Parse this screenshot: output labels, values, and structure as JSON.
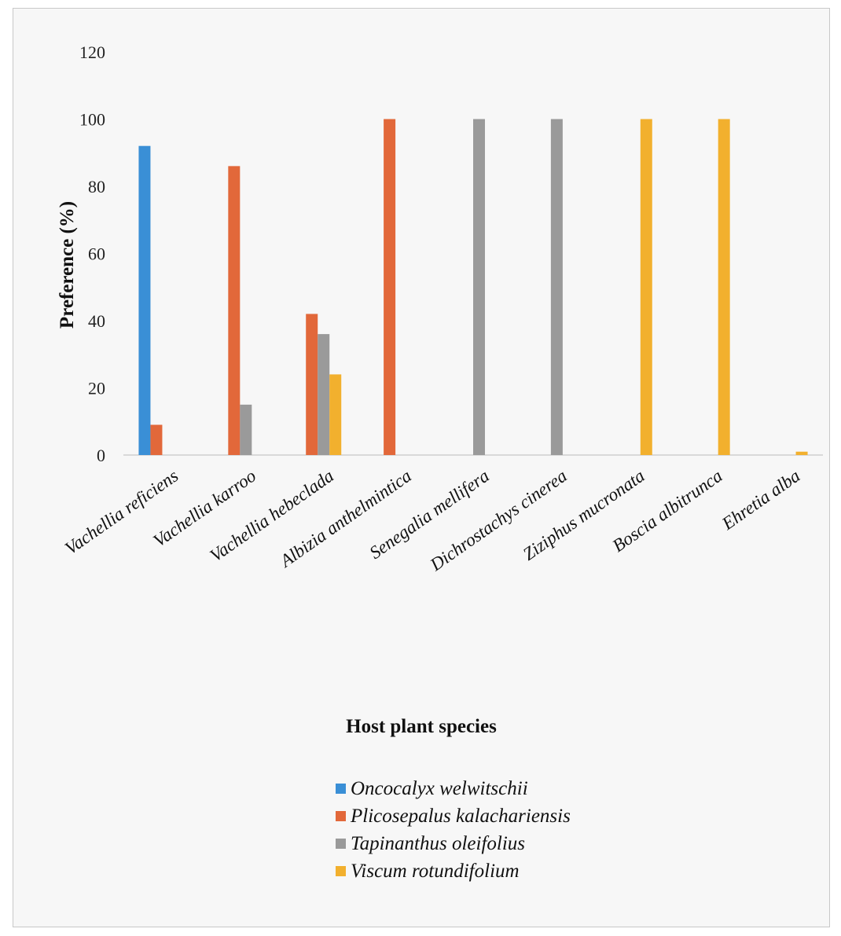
{
  "chart_data": {
    "type": "bar",
    "title": "",
    "xlabel": "Host plant species",
    "ylabel": "Preference (%)",
    "ylim": [
      0,
      120
    ],
    "yticks": [
      0,
      20,
      40,
      60,
      80,
      100,
      120
    ],
    "grid": false,
    "legend_position": "bottom",
    "categories": [
      "Vachellia reficiens",
      "Vachellia karroo",
      "Vachellia hebeclada",
      "Albizia anthelmintica",
      "Senegalia mellifera",
      "Dichrostachys cinerea",
      "Ziziphus mucronata",
      "Boscia albitrunca",
      "Ehretia alba"
    ],
    "series": [
      {
        "name": "Oncocalyx welwitschii",
        "color": "#3a8fd6",
        "values": [
          92,
          0,
          0,
          0,
          0,
          0,
          0,
          0,
          0
        ]
      },
      {
        "name": "Plicosepalus kalachariensis",
        "color": "#e2683a",
        "values": [
          9,
          86,
          42,
          100,
          0,
          0,
          0,
          0,
          0
        ]
      },
      {
        "name": "Tapinanthus oleifolius",
        "color": "#9a9a9a",
        "values": [
          0,
          15,
          36,
          0,
          100,
          100,
          0,
          0,
          0
        ]
      },
      {
        "name": "Viscum rotundifolium",
        "color": "#f2b02e",
        "values": [
          0,
          0,
          24,
          0,
          0,
          0,
          100,
          100,
          1
        ]
      }
    ]
  }
}
